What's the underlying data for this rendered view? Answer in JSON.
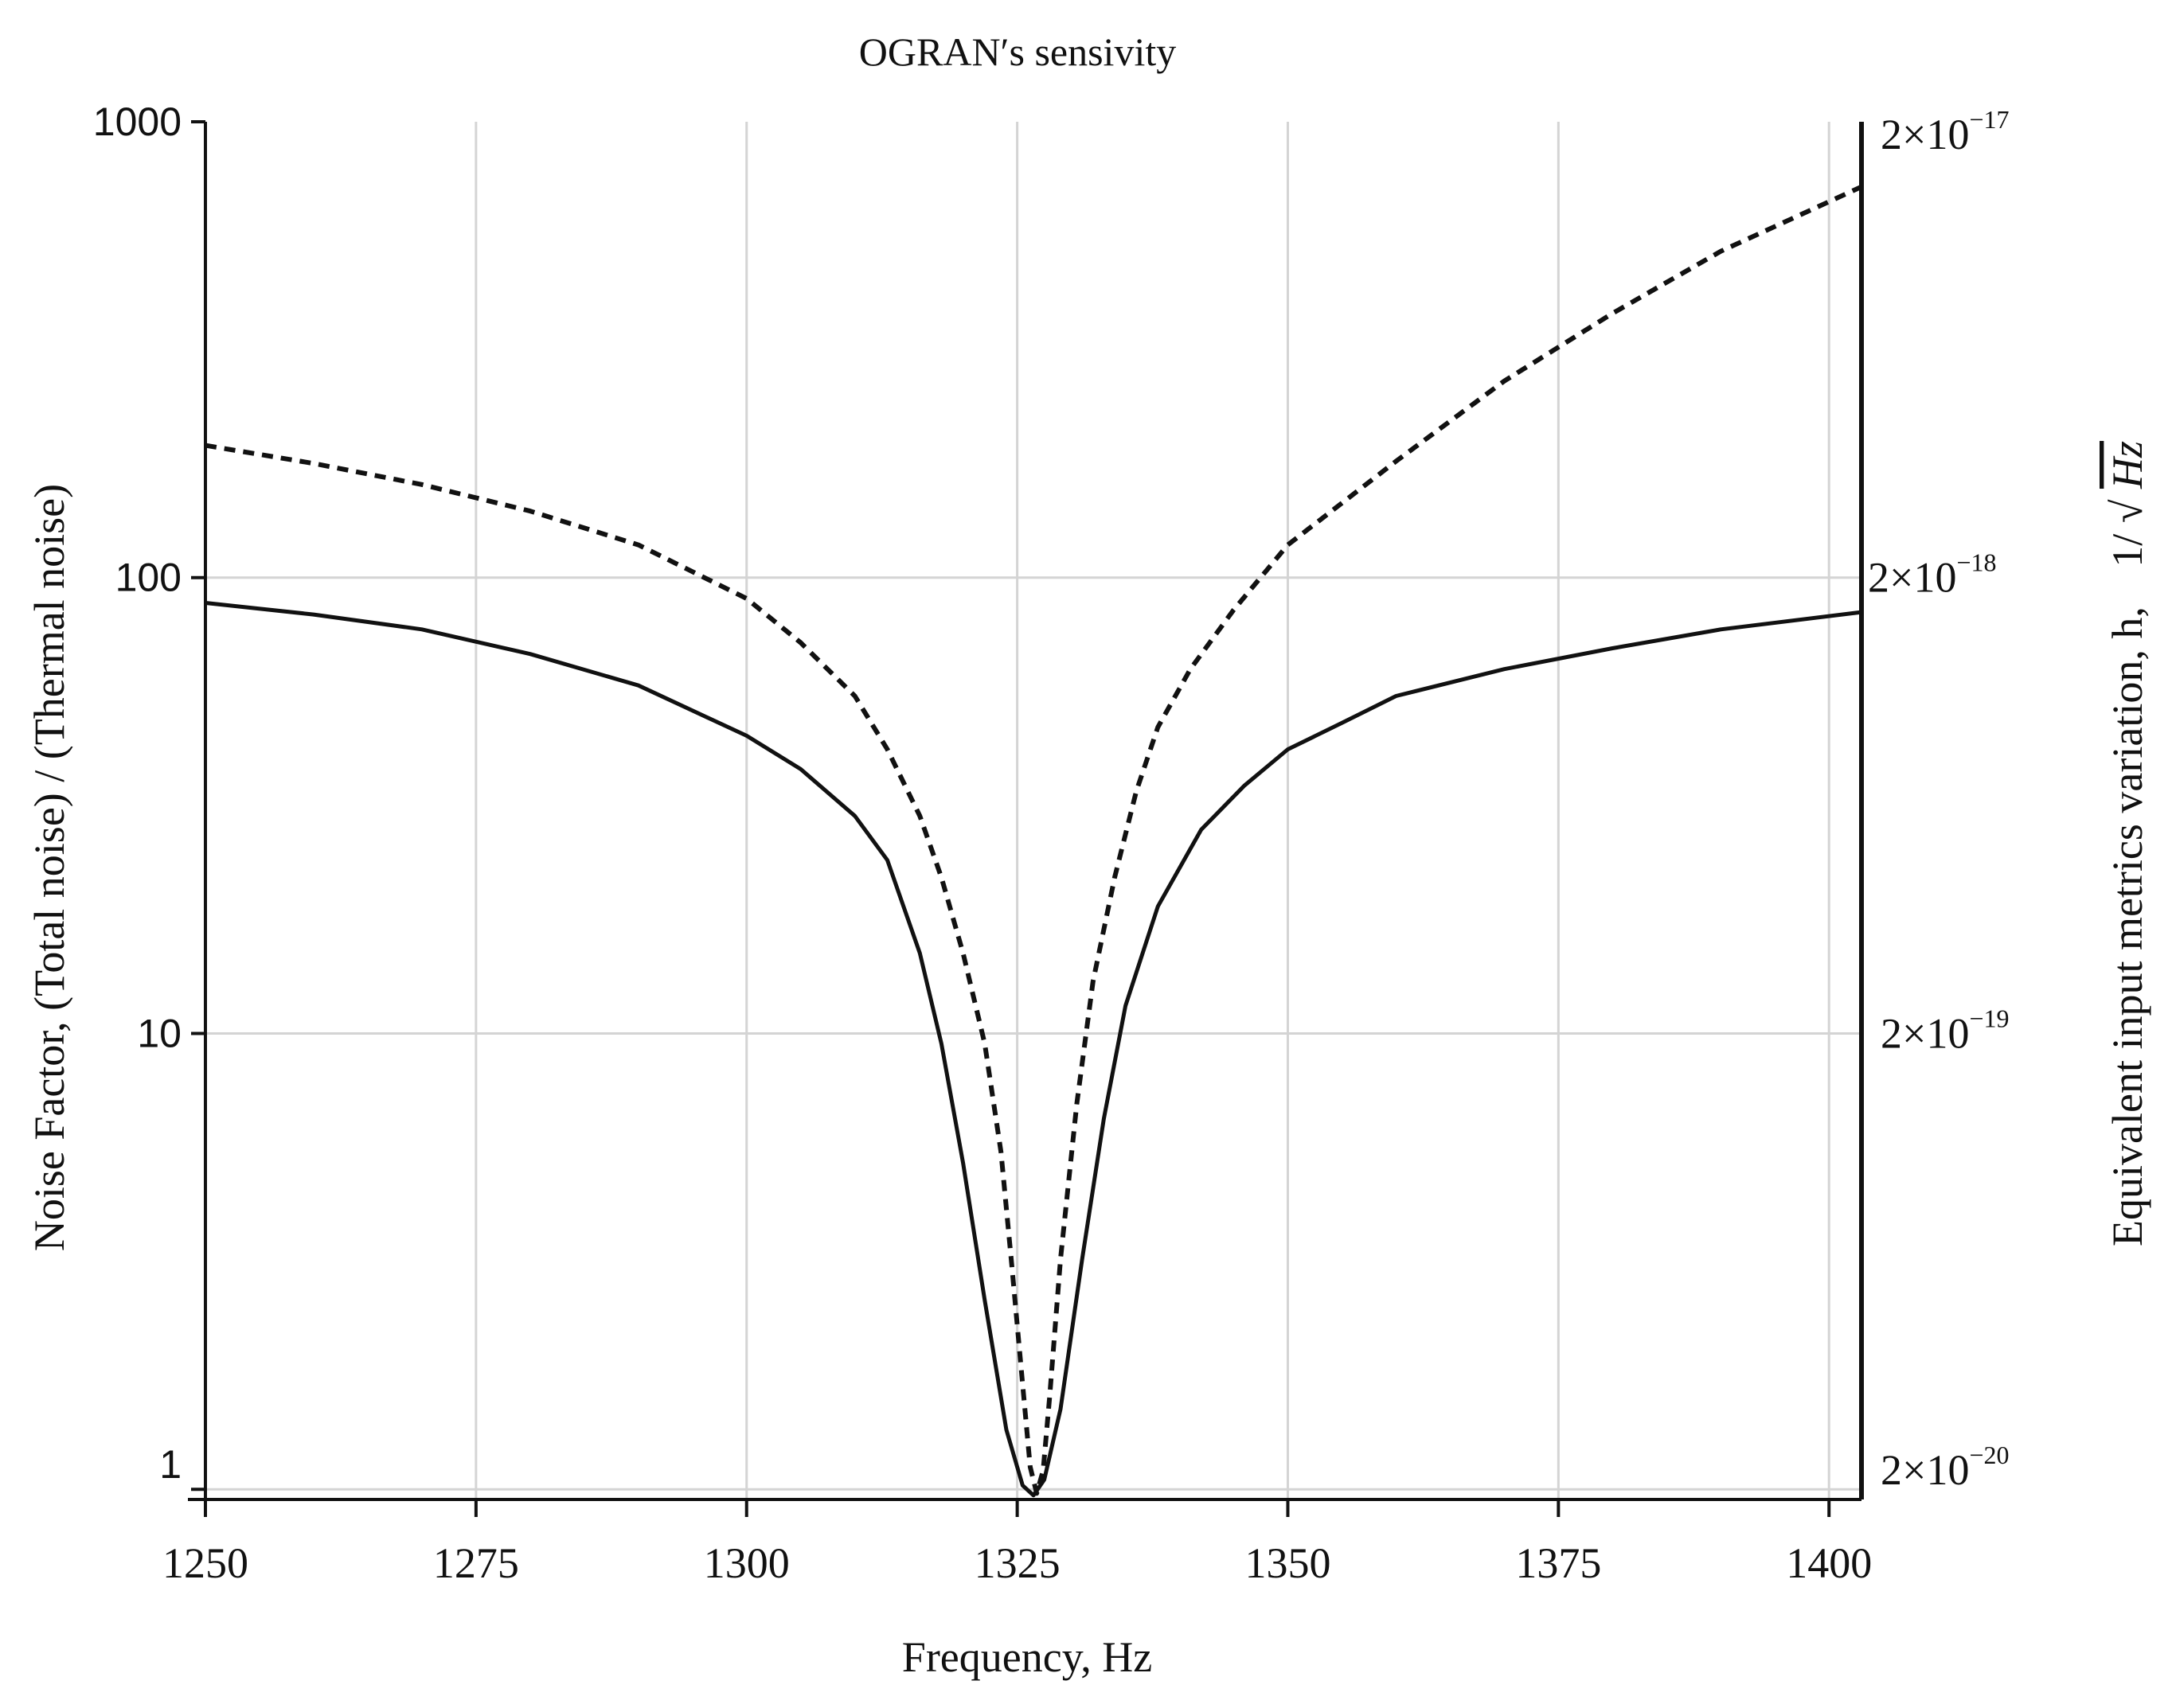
{
  "chart_data": {
    "type": "line",
    "title": "OGRAN′s sensivity",
    "xlabel": "Frequency, Hz",
    "ylabel_left": "Noise Factor, (Total noise) / (Thermal noise)",
    "ylabel_right_text": "Equivalent input metrics variation, h,",
    "ylabel_right_unit_prefix": "1/",
    "ylabel_right_unit_radicand": "Hz",
    "x_ticks": [
      1250,
      1275,
      1300,
      1325,
      1350,
      1375,
      1400
    ],
    "x_tick_labels": [
      "1250",
      "1275",
      "1300",
      "1325",
      "1350",
      "1375",
      "1400"
    ],
    "xlim": [
      1250,
      1403
    ],
    "y_left_scale": "log",
    "y_left_ticks": [
      1,
      10,
      100,
      1000
    ],
    "y_left_tick_labels": [
      "1",
      "10",
      "100",
      "1000"
    ],
    "ylim_left": [
      0.95,
      1000
    ],
    "y_right_ticks": [
      {
        "value": 1,
        "mantissa": "2×10",
        "exponent": "−20"
      },
      {
        "value": 10,
        "mantissa": "2×10",
        "exponent": "−19"
      },
      {
        "value": 100,
        "mantissa": "2×10",
        "exponent": "−18"
      },
      {
        "value": 1000,
        "mantissa": "2×10",
        "exponent": "−17"
      }
    ],
    "grid": true,
    "series": [
      {
        "name": "noise factor",
        "axis": "left",
        "style": "solid",
        "color": "#111111",
        "x": [
          1250,
          1260,
          1270,
          1280,
          1290,
          1300,
          1305,
          1310,
          1313,
          1316,
          1318,
          1320,
          1322,
          1324,
          1325.5,
          1326.5,
          1327.5,
          1329,
          1331,
          1333,
          1335,
          1338,
          1342,
          1346,
          1350,
          1355,
          1360,
          1370,
          1380,
          1390,
          1403
        ],
        "y": [
          88,
          83,
          77,
          68,
          58,
          45,
          38,
          30,
          24,
          15,
          9.5,
          5.2,
          2.6,
          1.35,
          1.02,
          0.97,
          1.05,
          1.5,
          3.2,
          6.5,
          11.5,
          19,
          28,
          35,
          42,
          48,
          55,
          63,
          70,
          77,
          84
        ]
      },
      {
        "name": "equivalent input metrics variation",
        "axis": "right",
        "style": "dashed",
        "color": "#111111",
        "x": [
          1250,
          1260,
          1270,
          1280,
          1290,
          1300,
          1305,
          1310,
          1313,
          1316,
          1318,
          1320,
          1322,
          1323.5,
          1324.5,
          1325.5,
          1326.2,
          1326.8,
          1327.4,
          1328,
          1329,
          1330.5,
          1332,
          1334,
          1336,
          1338,
          1341,
          1345,
          1350,
          1360,
          1370,
          1380,
          1390,
          1403
        ],
        "y": [
          195,
          178,
          160,
          140,
          118,
          90,
          72,
          55,
          42,
          30,
          22,
          15,
          9.5,
          5.5,
          3.1,
          1.7,
          1.12,
          0.98,
          1.1,
          1.6,
          3.2,
          7,
          13,
          22,
          34,
          47,
          63,
          85,
          118,
          180,
          270,
          380,
          520,
          720
        ]
      }
    ]
  }
}
